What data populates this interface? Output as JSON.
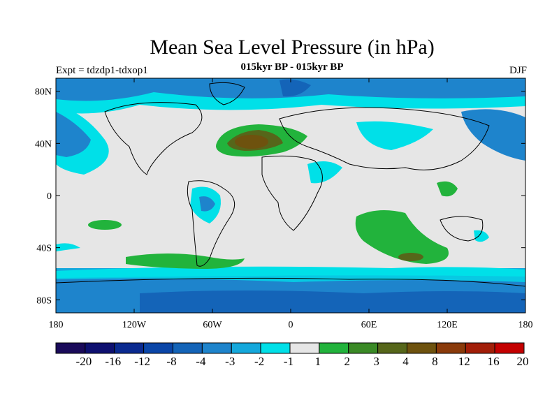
{
  "map": {
    "title": "Mean Sea Level Pressure (in hPa)",
    "subtitle": "015kyr BP - 015kyr BP",
    "left_label": "Expt = tdzdp1-tdxop1",
    "right_label": "DJF",
    "lon_ticks": [
      "180",
      "120W",
      "60W",
      "0",
      "60E",
      "120E",
      "180"
    ],
    "lat_ticks": [
      "80N",
      "40N",
      "0",
      "40S",
      "80S"
    ],
    "colorbar": {
      "colors": [
        "#1a0a5a",
        "#0e1070",
        "#0a2a90",
        "#0a46a8",
        "#1464b8",
        "#1e84cc",
        "#14a8dc",
        "#00e0e8",
        "#e6e6e6",
        "#22b33c",
        "#3a8a26",
        "#56661a",
        "#6e520e",
        "#8a3a0a",
        "#a21e08",
        "#c40000"
      ],
      "labels": [
        "-20",
        "-16",
        "-12",
        "-8",
        "-4",
        "-3",
        "-2",
        "-1",
        "1",
        "2",
        "3",
        "4",
        "8",
        "12",
        "16",
        "20"
      ]
    }
  }
}
